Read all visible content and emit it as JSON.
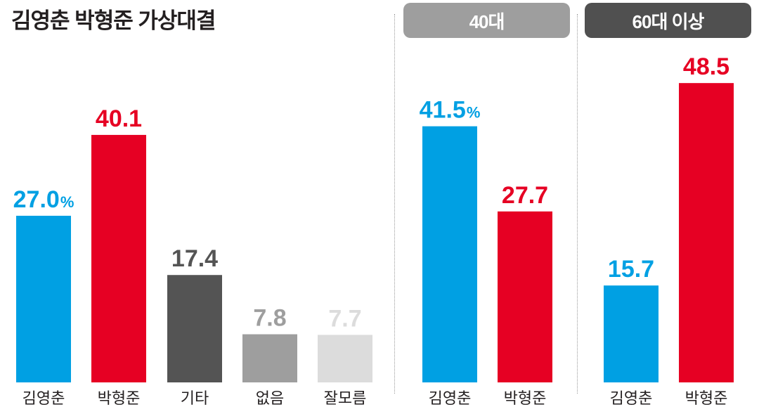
{
  "title": "김영춘 박형준 가상대결",
  "colors": {
    "kim": "#00a0e3",
    "park": "#e60023",
    "other": "#545454",
    "none": "#9e9e9e",
    "unknown": "#dcdcdc",
    "pill_40s": "#9e9e9e",
    "pill_60s": "#505050"
  },
  "chart_data": [
    {
      "type": "bar",
      "title": "김영춘 박형준 가상대결",
      "categories": [
        "김영춘",
        "박형준",
        "기타",
        "없음",
        "잘모름"
      ],
      "values": [
        27.0,
        40.1,
        17.4,
        7.8,
        7.7
      ],
      "labels": [
        "27.0",
        "40.1",
        "17.4",
        "7.8",
        "7.7"
      ],
      "unit": "%",
      "unit_on_first": true,
      "colors": [
        "#00a0e3",
        "#e60023",
        "#545454",
        "#9e9e9e",
        "#dcdcdc"
      ],
      "ylim": [
        0,
        60
      ],
      "grid": false
    },
    {
      "type": "bar",
      "title": "40대",
      "categories": [
        "김영춘",
        "박형준"
      ],
      "values": [
        41.5,
        27.7
      ],
      "labels": [
        "41.5",
        "27.7"
      ],
      "unit": "%",
      "unit_on_first": true,
      "colors": [
        "#00a0e3",
        "#e60023"
      ],
      "ylim": [
        0,
        60
      ],
      "grid": false
    },
    {
      "type": "bar",
      "title": "60대 이상",
      "categories": [
        "김영춘",
        "박형준"
      ],
      "values": [
        15.7,
        48.5
      ],
      "labels": [
        "15.7",
        "48.5"
      ],
      "unit": "",
      "unit_on_first": false,
      "colors": [
        "#00a0e3",
        "#e60023"
      ],
      "ylim": [
        0,
        60
      ],
      "grid": false
    }
  ]
}
